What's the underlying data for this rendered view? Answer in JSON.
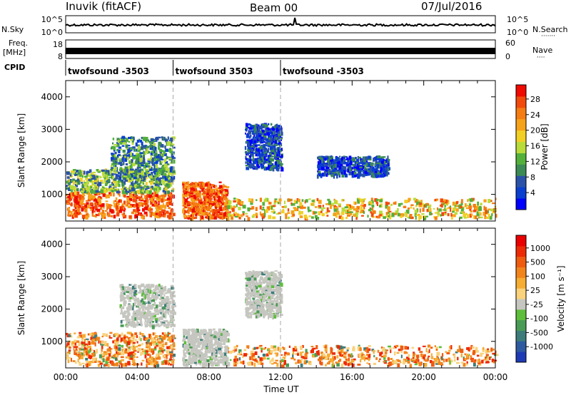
{
  "header": {
    "station": "Inuvik (fitACF)",
    "beam": "Beam 00",
    "date": "07/Jul/2016"
  },
  "strip_labels": {
    "nsky": "N.Sky",
    "nsearch": "N.Search",
    "nsearch_dots": "·······",
    "freq": "Freq.",
    "freq_unit": "[MHz]",
    "nave": "Nave",
    "nave_dots": "····",
    "cpid": "CPID",
    "noise_ticks": [
      "10^5",
      "10^0"
    ],
    "freq_ticks": [
      "18",
      "8"
    ],
    "nave_ticks": [
      "60",
      "0"
    ]
  },
  "cpid_segments": [
    {
      "label": "twofsound -3503",
      "start_hour": 0
    },
    {
      "label": "twofsound 3503",
      "start_hour": 6
    },
    {
      "label": "twofsound -3503",
      "start_hour": 12
    }
  ],
  "x_axis": {
    "title": "Time UT",
    "range_hours": [
      0,
      24
    ],
    "tick_labels": [
      "00:00",
      "04:00",
      "08:00",
      "12:00",
      "16:00",
      "20:00",
      "00:00"
    ]
  },
  "chart_data": [
    {
      "type": "heatmap",
      "panel": "power",
      "ylabel": "Slant Range [km]",
      "ylim": [
        180,
        4500
      ],
      "y_ticks": [
        1000,
        2000,
        3000,
        4000
      ],
      "x_range_hours": [
        0,
        24
      ],
      "colorbar": {
        "title": "Power [dB]",
        "ticks": [
          "4",
          "8",
          "12",
          "16",
          "20",
          "24",
          "28"
        ],
        "colors": [
          "#0000ff",
          "#0a3fd0",
          "#2a52a8",
          "#3c8a55",
          "#53b03a",
          "#b9dc3b",
          "#f2cf25",
          "#f6a21a",
          "#f57c13",
          "#f24a0c",
          "#ef0a02"
        ]
      },
      "regions": [
        {
          "t": [
            0.0,
            6.0
          ],
          "r": [
            350,
            1100
          ],
          "level": "high"
        },
        {
          "t": [
            0.0,
            6.0
          ],
          "r": [
            1100,
            1800
          ],
          "level": "medium"
        },
        {
          "t": [
            2.5,
            6.0
          ],
          "r": [
            1500,
            2800
          ],
          "level": "low-medium"
        },
        {
          "t": [
            6.5,
            9.0
          ],
          "r": [
            300,
            1400
          ],
          "level": "high"
        },
        {
          "t": [
            9.0,
            24.0
          ],
          "r": [
            300,
            900
          ],
          "level": "medium-high"
        },
        {
          "t": [
            10.0,
            12.0
          ],
          "r": [
            1800,
            3200
          ],
          "level": "low"
        },
        {
          "t": [
            14.0,
            18.0
          ],
          "r": [
            1600,
            2200
          ],
          "level": "low"
        }
      ]
    },
    {
      "type": "heatmap",
      "panel": "velocity",
      "ylabel": "Slant Range [km]",
      "ylim": [
        180,
        4500
      ],
      "y_ticks": [
        1000,
        2000,
        3000,
        4000
      ],
      "x_range_hours": [
        0,
        24
      ],
      "colorbar": {
        "title": "Velocity [m s⁻¹]",
        "ticks": [
          "1000",
          "500",
          "100",
          "25",
          "-25",
          "-100",
          "-500",
          "-1000"
        ],
        "colors": [
          "#1e3ab5",
          "#2e5aa0",
          "#3d7c7a",
          "#4a9b56",
          "#5fbd3c",
          "#c6c6c0",
          "#f9d27b",
          "#f6ad34",
          "#f2841c",
          "#ef5c10",
          "#ed2a06",
          "#ea0000"
        ]
      },
      "regions": [
        {
          "t": [
            0.0,
            6.0
          ],
          "r": [
            300,
            1300
          ],
          "level": "away"
        },
        {
          "t": [
            6.5,
            9.0
          ],
          "r": [
            300,
            1400
          ],
          "level": "low"
        },
        {
          "t": [
            9.0,
            24.0
          ],
          "r": [
            300,
            900
          ],
          "level": "away"
        },
        {
          "t": [
            3.0,
            6.0
          ],
          "r": [
            1500,
            2800
          ],
          "level": "low"
        },
        {
          "t": [
            10.0,
            12.0
          ],
          "r": [
            1800,
            3200
          ],
          "level": "low"
        }
      ]
    }
  ]
}
